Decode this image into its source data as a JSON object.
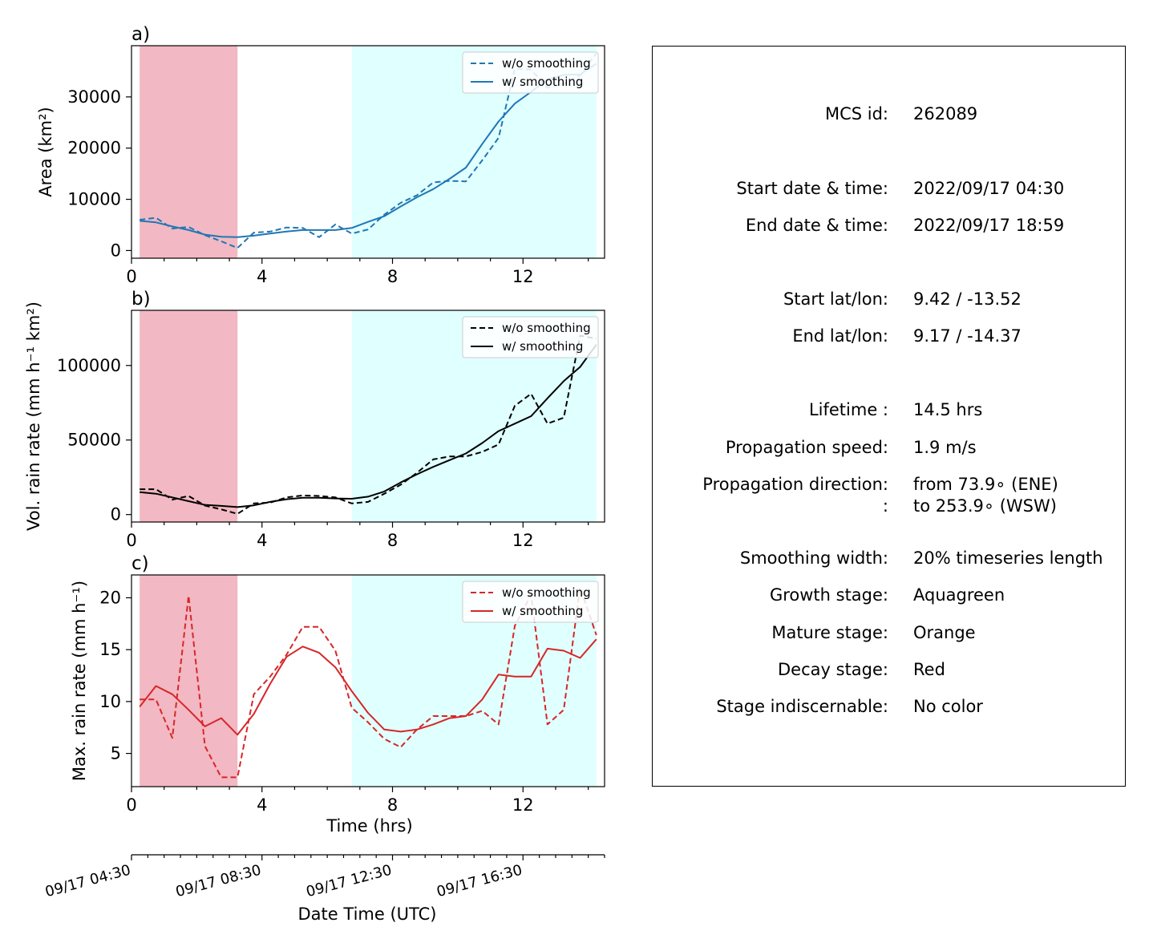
{
  "chart_data": [
    {
      "panel": "a)",
      "type": "line",
      "ylabel": "Area  (km²)",
      "xlabel": "",
      "xlim": [
        0,
        14.5
      ],
      "ylim": [
        -1500,
        40000
      ],
      "xticks": [
        0,
        4,
        8,
        12
      ],
      "yticks": [
        0,
        10000,
        20000,
        30000
      ],
      "ytick_labels": [
        "0",
        "10000",
        "20000",
        "30000"
      ],
      "color": "#1f77b4",
      "stage_shading": [
        {
          "stage": "decay",
          "x0": 0.25,
          "x1": 3.25,
          "color": "#f2b8c3"
        },
        {
          "stage": "growth",
          "x0": 6.75,
          "x1": 14.25,
          "color": "#e0ffff"
        }
      ],
      "legend": {
        "position": "upper right",
        "entries": [
          "w/o smoothing",
          "w/ smoothing"
        ]
      },
      "series": [
        {
          "name": "w/o smoothing",
          "style": "dashed",
          "x": [
            0.25,
            0.75,
            1.25,
            1.75,
            2.25,
            2.75,
            3.25,
            3.75,
            4.25,
            4.75,
            5.25,
            5.75,
            6.25,
            6.75,
            7.25,
            7.75,
            8.25,
            8.75,
            9.25,
            9.75,
            10.25,
            10.75,
            11.25,
            11.75,
            12.25,
            12.75,
            13.25,
            13.75,
            14.25
          ],
          "y": [
            6000,
            6400,
            4300,
            4600,
            3000,
            1800,
            500,
            3500,
            3700,
            4500,
            4400,
            2600,
            5100,
            3300,
            4100,
            7000,
            9300,
            10800,
            13300,
            13600,
            13500,
            17600,
            22000,
            35500,
            35300,
            31800,
            32500,
            34200,
            38500
          ]
        },
        {
          "name": "w/ smoothing",
          "style": "solid",
          "x": [
            0.25,
            0.75,
            1.25,
            1.75,
            2.25,
            2.75,
            3.25,
            3.75,
            4.25,
            4.75,
            5.25,
            5.75,
            6.25,
            6.75,
            7.25,
            7.75,
            8.25,
            8.75,
            9.25,
            9.75,
            10.25,
            10.75,
            11.25,
            11.75,
            12.25,
            12.75,
            13.25,
            13.75,
            14.25
          ],
          "y": [
            5800,
            5500,
            4700,
            4000,
            3100,
            2700,
            2600,
            2900,
            3300,
            3700,
            4000,
            4000,
            4000,
            4400,
            5600,
            6700,
            8600,
            10400,
            12000,
            14000,
            16200,
            20800,
            25200,
            28700,
            31000,
            33400,
            34300,
            34400,
            36500
          ]
        }
      ]
    },
    {
      "panel": "b)",
      "type": "line",
      "ylabel": "Vol. rain rate (mm h⁻¹ km²)",
      "xlabel": "",
      "xlim": [
        0,
        14.5
      ],
      "ylim": [
        -5000,
        137000
      ],
      "xticks": [
        0,
        4,
        8,
        12
      ],
      "yticks": [
        0,
        50000,
        100000
      ],
      "ytick_labels": [
        "0",
        "50000",
        "100000"
      ],
      "color": "#000000",
      "stage_shading": [
        {
          "stage": "decay",
          "x0": 0.25,
          "x1": 3.25,
          "color": "#f2b8c3"
        },
        {
          "stage": "growth",
          "x0": 6.75,
          "x1": 14.25,
          "color": "#e0ffff"
        }
      ],
      "legend": {
        "position": "upper right",
        "entries": [
          "w/o smoothing",
          "w/ smoothing"
        ]
      },
      "series": [
        {
          "name": "w/o smoothing",
          "style": "dashed",
          "x": [
            0.25,
            0.75,
            1.25,
            1.75,
            2.25,
            2.75,
            3.25,
            3.75,
            4.25,
            4.75,
            5.25,
            5.75,
            6.25,
            6.75,
            7.25,
            7.75,
            8.25,
            8.75,
            9.25,
            9.75,
            10.25,
            10.75,
            11.25,
            11.75,
            12.25,
            12.75,
            13.25,
            13.75,
            14.25
          ],
          "y": [
            17000,
            17000,
            10000,
            12500,
            6000,
            3500,
            500,
            7500,
            8000,
            11500,
            12800,
            12500,
            11500,
            7500,
            8500,
            14000,
            20000,
            28000,
            37000,
            39000,
            39000,
            42000,
            47000,
            73000,
            81000,
            61000,
            65000,
            120000,
            118000
          ]
        },
        {
          "name": "w/ smoothing",
          "style": "solid",
          "x": [
            0.25,
            0.75,
            1.25,
            1.75,
            2.25,
            2.75,
            3.25,
            3.75,
            4.25,
            4.75,
            5.25,
            5.75,
            6.25,
            6.75,
            7.25,
            7.75,
            8.25,
            8.75,
            9.25,
            9.75,
            10.25,
            10.75,
            11.25,
            11.75,
            12.25,
            12.75,
            13.25,
            13.75,
            14.25
          ],
          "y": [
            15000,
            14000,
            11500,
            9000,
            6500,
            5800,
            5000,
            6200,
            8500,
            10300,
            11300,
            11300,
            10800,
            10600,
            12000,
            15500,
            21500,
            27000,
            32000,
            36500,
            41000,
            48000,
            56000,
            61000,
            66000,
            78000,
            89500,
            99000,
            114000
          ]
        }
      ]
    },
    {
      "panel": "c)",
      "type": "line",
      "ylabel": "Max. rain rate  (mm h⁻¹)",
      "xlabel": "Time (hrs)",
      "xlim": [
        0,
        14.5
      ],
      "ylim": [
        1.8,
        22.2
      ],
      "xticks": [
        0,
        4,
        8,
        12
      ],
      "yticks": [
        5,
        10,
        15,
        20
      ],
      "ytick_labels": [
        "5",
        "10",
        "15",
        "20"
      ],
      "color": "#d62728",
      "stage_shading": [
        {
          "stage": "decay",
          "x0": 0.25,
          "x1": 3.25,
          "color": "#f2b8c3"
        },
        {
          "stage": "growth",
          "x0": 6.75,
          "x1": 14.25,
          "color": "#e0ffff"
        }
      ],
      "legend": {
        "position": "upper right",
        "entries": [
          "w/o smoothing",
          "w/ smoothing"
        ]
      },
      "series": [
        {
          "name": "w/o smoothing",
          "style": "dashed",
          "x": [
            0.25,
            0.75,
            1.25,
            1.75,
            2.25,
            2.75,
            3.25,
            3.75,
            4.25,
            4.75,
            5.25,
            5.75,
            6.25,
            6.75,
            7.25,
            7.75,
            8.25,
            8.75,
            9.25,
            9.75,
            10.25,
            10.75,
            11.25,
            11.75,
            12.25,
            12.75,
            13.25,
            13.75,
            14.25
          ],
          "y": [
            10.2,
            10.2,
            6.5,
            20.2,
            5.7,
            2.7,
            2.7,
            10.7,
            12.4,
            14.5,
            17.2,
            17.2,
            14.9,
            9.4,
            8.0,
            6.4,
            5.6,
            7.3,
            8.6,
            8.6,
            8.6,
            9.1,
            7.8,
            17.3,
            20.3,
            7.8,
            9.2,
            21.0,
            16.4
          ]
        },
        {
          "name": "w/ smoothing",
          "style": "solid",
          "x": [
            0.25,
            0.75,
            1.25,
            1.75,
            2.25,
            2.75,
            3.25,
            3.75,
            4.25,
            4.75,
            5.25,
            5.75,
            6.25,
            6.75,
            7.25,
            7.75,
            8.25,
            8.75,
            9.25,
            9.75,
            10.25,
            10.75,
            11.25,
            11.75,
            12.25,
            12.75,
            13.25,
            13.75,
            14.25
          ],
          "y": [
            9.5,
            11.5,
            10.7,
            9.2,
            7.6,
            8.4,
            6.8,
            8.8,
            11.7,
            14.3,
            15.3,
            14.7,
            13.3,
            11.0,
            8.9,
            7.3,
            7.1,
            7.3,
            7.8,
            8.4,
            8.6,
            10.2,
            12.6,
            12.4,
            12.4,
            15.1,
            14.9,
            14.2,
            16.0
          ]
        }
      ]
    }
  ],
  "secondary_axis": {
    "label": "Date Time (UTC)",
    "tick_labels": [
      "09/17 04:30",
      "09/17 08:30",
      "09/17 12:30",
      "09/17 16:30"
    ],
    "major_ticks_hours": [
      0,
      4,
      8,
      12
    ],
    "minor_tick_step_hours": 0.5
  },
  "info": {
    "rows": [
      {
        "label": "MCS id:",
        "value": "262089"
      },
      {
        "label": "Start date & time:",
        "value": "2022/09/17 04:30"
      },
      {
        "label": "End date & time:",
        "value": "2022/09/17 18:59"
      },
      {
        "label": "Start lat/lon:",
        "value": "9.42 / -13.52"
      },
      {
        "label": "End lat/lon:",
        "value": "9.17 / -14.37"
      },
      {
        "label": "Lifetime :",
        "value": "14.5 hrs"
      },
      {
        "label": "Propagation speed:",
        "value": "1.9 m/s"
      },
      {
        "label": "Propagation direction:",
        "value": "from  73.9∘ (ENE)"
      },
      {
        "label": ":",
        "value": "to   253.9∘ (WSW)"
      },
      {
        "label": "Smoothing width:",
        "value": "20% timeseries length"
      },
      {
        "label": "Growth stage:",
        "value": "Aquagreen"
      },
      {
        "label": "Mature stage:",
        "value": "Orange"
      },
      {
        "label": "Decay stage:",
        "value": "Red"
      },
      {
        "label": "Stage indiscernable:",
        "value": "No color"
      }
    ]
  }
}
